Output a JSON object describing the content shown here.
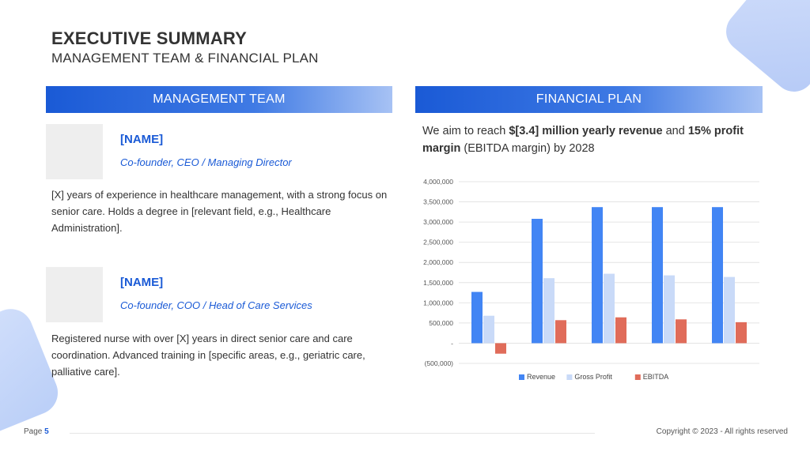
{
  "header": {
    "title": "EXECUTIVE SUMMARY",
    "subtitle": "MANAGEMENT TEAM & FINANCIAL PLAN"
  },
  "management": {
    "heading": "MANAGEMENT TEAM",
    "members": [
      {
        "name": "[NAME]",
        "role": "Co-founder, CEO / Managing Director",
        "bio": "[X] years of experience in healthcare management, with a strong focus on senior care. Holds a degree in [relevant field, e.g., Healthcare Administration]."
      },
      {
        "name": "[NAME]",
        "role": "Co-founder, COO / Head of Care Services",
        "bio": "Registered nurse with over [X] years in direct senior care and care coordination. Advanced training in [specific areas, e.g., geriatric care, palliative care]."
      }
    ]
  },
  "financial": {
    "heading": "FINANCIAL PLAN",
    "text_part1": "We aim to reach ",
    "text_bold1": "$[3.4] million yearly revenue",
    "text_part2": " and ",
    "text_bold2": "15% profit margin",
    "text_part3": " (EBITDA margin) by 2028"
  },
  "chart_data": {
    "type": "bar",
    "categories": [
      "",
      "",
      "",
      "",
      ""
    ],
    "series": [
      {
        "name": "Revenue",
        "values": [
          1270000,
          3080000,
          3370000,
          3370000,
          3370000
        ],
        "color": "#4285f4"
      },
      {
        "name": "Gross Profit",
        "values": [
          680000,
          1610000,
          1720000,
          1680000,
          1640000
        ],
        "color": "#c9daf8"
      },
      {
        "name": "EBITDA",
        "values": [
          -260000,
          570000,
          640000,
          590000,
          520000
        ],
        "color": "#e06c5a"
      }
    ],
    "ylim": [
      -500000,
      4000000
    ],
    "yticks": [
      {
        "v": 4000000,
        "label": "4,000,000"
      },
      {
        "v": 3500000,
        "label": "3,500,000"
      },
      {
        "v": 3000000,
        "label": "3,000,000"
      },
      {
        "v": 2500000,
        "label": "2,500,000"
      },
      {
        "v": 2000000,
        "label": "2,000,000"
      },
      {
        "v": 1500000,
        "label": "1,500,000"
      },
      {
        "v": 1000000,
        "label": "1,000,000"
      },
      {
        "v": 500000,
        "label": "500,000"
      },
      {
        "v": 0,
        "label": "-"
      },
      {
        "v": -500000,
        "label": "(500,000)"
      }
    ],
    "grid": true,
    "legend": "bottom"
  },
  "footer": {
    "page_label": "Page",
    "page_number": "5",
    "copyright": "Copyright © 2023 - All rights reserved"
  }
}
